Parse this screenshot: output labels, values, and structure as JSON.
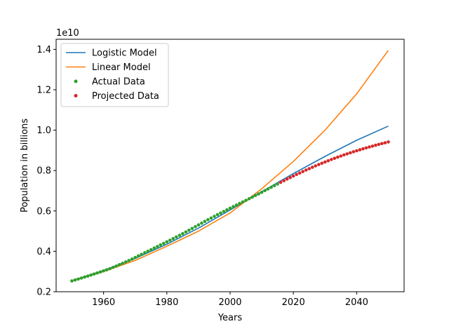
{
  "chart_data": {
    "type": "line",
    "title": "",
    "xlabel": "Years",
    "ylabel": "Population in billions",
    "offset_label": "1e10",
    "xlim": [
      1945,
      2055
    ],
    "ylim": [
      0.2,
      1.45
    ],
    "y_scale_multiplier": 10000000000,
    "xticks": [
      1960,
      1980,
      2000,
      2020,
      2040
    ],
    "xtick_labels": [
      "1960",
      "1980",
      "2000",
      "2020",
      "2040"
    ],
    "yticks": [
      0.2,
      0.4,
      0.6,
      0.8,
      1.0,
      1.2,
      1.4
    ],
    "ytick_labels": [
      "0.2",
      "0.4",
      "0.6",
      "0.8",
      "1.0",
      "1.2",
      "1.4"
    ],
    "grid": false,
    "legend_position": "top-left",
    "series": [
      {
        "name": "Logistic Model",
        "kind": "line",
        "color": "#1f77b4",
        "x": [
          1950,
          1960,
          1970,
          1980,
          1990,
          2000,
          2010,
          2020,
          2030,
          2040,
          2050
        ],
        "y": [
          0.255,
          0.305,
          0.365,
          0.435,
          0.515,
          0.605,
          0.695,
          0.785,
          0.87,
          0.95,
          1.02
        ]
      },
      {
        "name": "Linear Model",
        "kind": "line",
        "color": "#ff7f0e",
        "x": [
          1950,
          1960,
          1970,
          1980,
          1990,
          2000,
          2010,
          2020,
          2030,
          2040,
          2050
        ],
        "y": [
          0.255,
          0.3,
          0.355,
          0.425,
          0.5,
          0.59,
          0.71,
          0.845,
          1.0,
          1.18,
          1.395
        ]
      },
      {
        "name": "Actual Data",
        "kind": "scatter",
        "color": "#2ca02c",
        "x": [
          1950,
          1951,
          1952,
          1953,
          1954,
          1955,
          1956,
          1957,
          1958,
          1959,
          1960,
          1961,
          1962,
          1963,
          1964,
          1965,
          1966,
          1967,
          1968,
          1969,
          1970,
          1971,
          1972,
          1973,
          1974,
          1975,
          1976,
          1977,
          1978,
          1979,
          1980,
          1981,
          1982,
          1983,
          1984,
          1985,
          1986,
          1987,
          1988,
          1989,
          1990,
          1991,
          1992,
          1993,
          1994,
          1995,
          1996,
          1997,
          1998,
          1999,
          2000,
          2001,
          2002,
          2003,
          2004,
          2005,
          2006,
          2007,
          2008,
          2009,
          2010,
          2011,
          2012,
          2013,
          2014,
          2015
        ],
        "y": [
          0.2536,
          0.2584,
          0.263,
          0.2677,
          0.2724,
          0.2773,
          0.2823,
          0.2874,
          0.2926,
          0.2978,
          0.3032,
          0.3085,
          0.3142,
          0.3204,
          0.3271,
          0.3339,
          0.3407,
          0.3475,
          0.3545,
          0.3619,
          0.3696,
          0.3774,
          0.3852,
          0.393,
          0.4008,
          0.4085,
          0.4162,
          0.4238,
          0.4315,
          0.4394,
          0.4473,
          0.4553,
          0.4633,
          0.4713,
          0.4794,
          0.4876,
          0.496,
          0.5046,
          0.5133,
          0.5221,
          0.5309,
          0.5396,
          0.5482,
          0.5567,
          0.5651,
          0.5734,
          0.5816,
          0.5897,
          0.5977,
          0.6057,
          0.6136,
          0.6215,
          0.6293,
          0.6371,
          0.6448,
          0.6526,
          0.6604,
          0.6683,
          0.6763,
          0.6843,
          0.6925,
          0.7006,
          0.7088,
          0.7171,
          0.7252,
          0.7335
        ]
      },
      {
        "name": "Projected Data",
        "kind": "scatter",
        "color": "#d62728",
        "x": [
          2016,
          2017,
          2018,
          2019,
          2020,
          2021,
          2022,
          2023,
          2024,
          2025,
          2026,
          2027,
          2028,
          2029,
          2030,
          2031,
          2032,
          2033,
          2034,
          2035,
          2036,
          2037,
          2038,
          2039,
          2040,
          2041,
          2042,
          2043,
          2044,
          2045,
          2046,
          2047,
          2048,
          2049,
          2050
        ],
        "y": [
          0.7416,
          0.7496,
          0.7575,
          0.7653,
          0.773,
          0.7806,
          0.788,
          0.7953,
          0.8025,
          0.8095,
          0.8164,
          0.8231,
          0.8297,
          0.8362,
          0.8425,
          0.8487,
          0.8547,
          0.8606,
          0.8663,
          0.8719,
          0.8774,
          0.8827,
          0.8879,
          0.893,
          0.898,
          0.9028,
          0.9075,
          0.9121,
          0.9166,
          0.921,
          0.9253,
          0.9295,
          0.9336,
          0.9376,
          0.9415
        ]
      }
    ]
  }
}
